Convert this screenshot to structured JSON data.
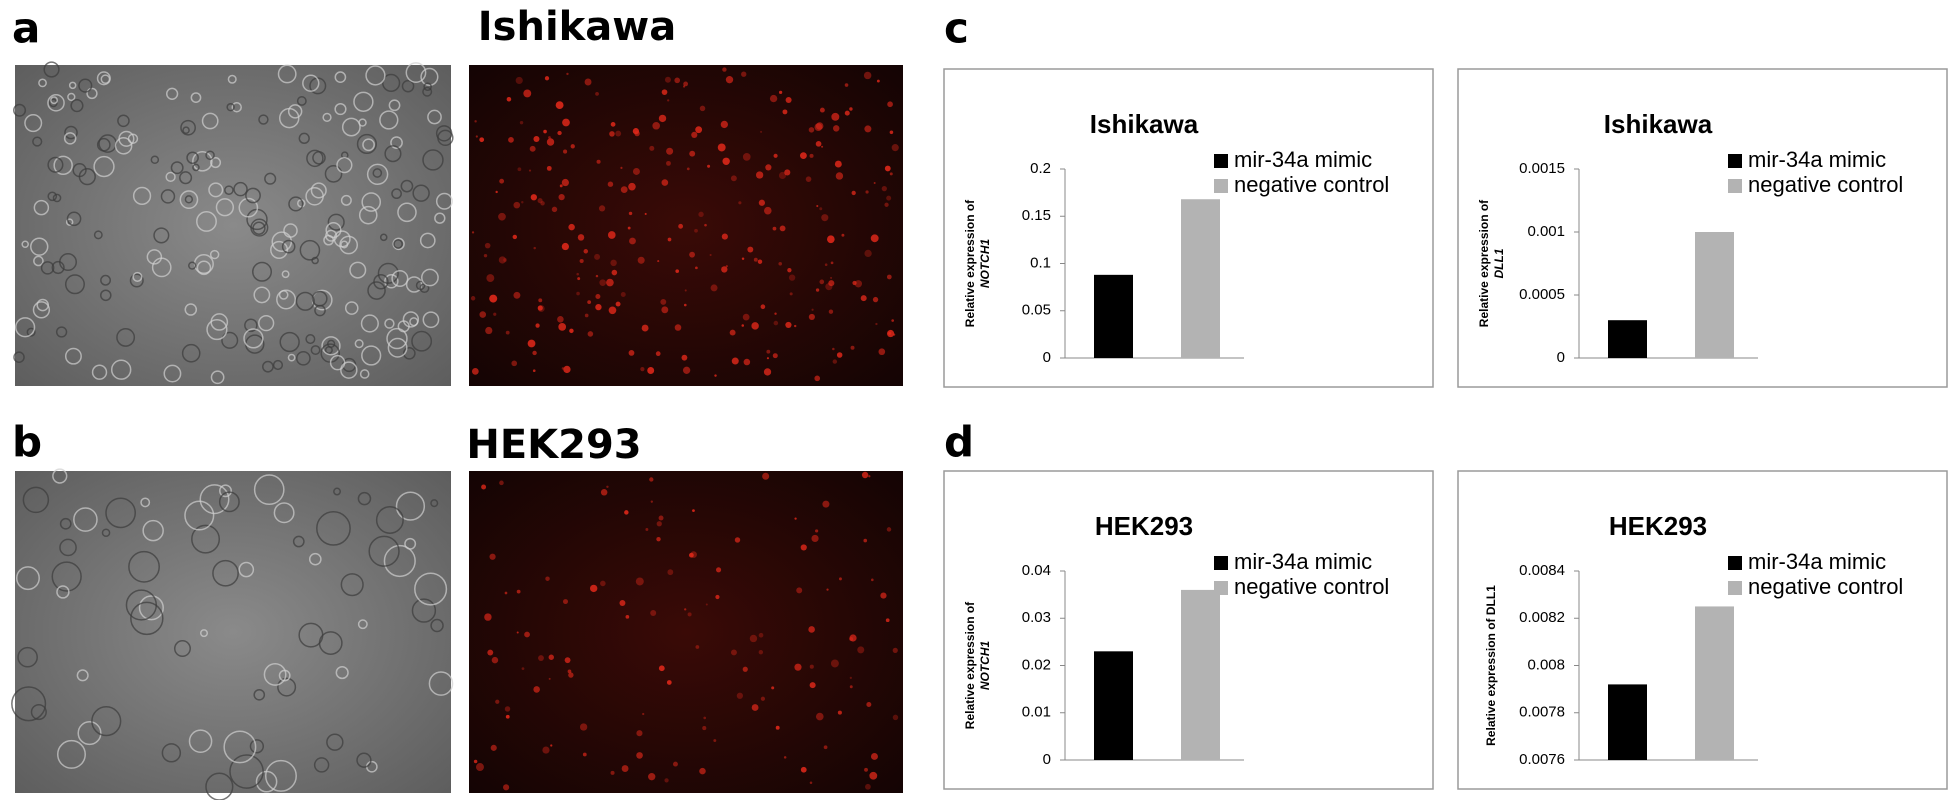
{
  "panels": {
    "a": {
      "letter": "a",
      "title": "Ishikawa"
    },
    "b": {
      "letter": "b",
      "title": "HEK293"
    },
    "c": {
      "letter": "c"
    },
    "d": {
      "letter": "d"
    }
  },
  "chart_data": [
    {
      "type": "bar",
      "title": "Ishikawa",
      "ylabel": [
        "Relative expression of",
        "NOTCH1"
      ],
      "categories": [
        null
      ],
      "series": [
        {
          "name": "mir-34a mimic",
          "color": "#000000",
          "values": [
            0.088
          ]
        },
        {
          "name": "negative control",
          "color": "#b3b3b3",
          "values": [
            0.168
          ]
        }
      ],
      "ylim": [
        0,
        0.2
      ],
      "yticks": [
        0,
        0.05,
        0.1,
        0.15,
        0.2
      ],
      "legend": "upper right",
      "grid": false
    },
    {
      "type": "bar",
      "title": "Ishikawa",
      "ylabel": [
        "Relative expression of",
        "DLL1"
      ],
      "categories": [
        null
      ],
      "series": [
        {
          "name": "mir-34a mimic",
          "color": "#000000",
          "values": [
            0.0003
          ]
        },
        {
          "name": "negative control",
          "color": "#b3b3b3",
          "values": [
            0.001
          ]
        }
      ],
      "ylim": [
        0,
        0.0015
      ],
      "yticks": [
        0,
        0.0005,
        0.001,
        0.0015
      ],
      "legend": "upper right",
      "grid": false
    },
    {
      "type": "bar",
      "title": "HEK293",
      "ylabel": [
        "Relative expression of",
        "NOTCH1"
      ],
      "categories": [
        null
      ],
      "series": [
        {
          "name": "mir-34a mimic",
          "color": "#000000",
          "values": [
            0.023
          ]
        },
        {
          "name": "negative control",
          "color": "#b3b3b3",
          "values": [
            0.036
          ]
        }
      ],
      "ylim": [
        0,
        0.04
      ],
      "yticks": [
        0,
        0.01,
        0.02,
        0.03,
        0.04
      ],
      "legend": "upper right",
      "grid": false
    },
    {
      "type": "bar",
      "title": "HEK293",
      "ylabel": [
        "Relative expression of DLL1"
      ],
      "categories": [
        null
      ],
      "series": [
        {
          "name": "mir-34a mimic",
          "color": "#000000",
          "values": [
            0.00792
          ]
        },
        {
          "name": "negative control",
          "color": "#b3b3b3",
          "values": [
            0.00825
          ]
        }
      ],
      "ylim": [
        0.0076,
        0.0084
      ],
      "yticks": [
        0.0076,
        0.0078,
        0.008,
        0.0082,
        0.0084
      ],
      "legend": "upper right",
      "grid": false
    }
  ]
}
